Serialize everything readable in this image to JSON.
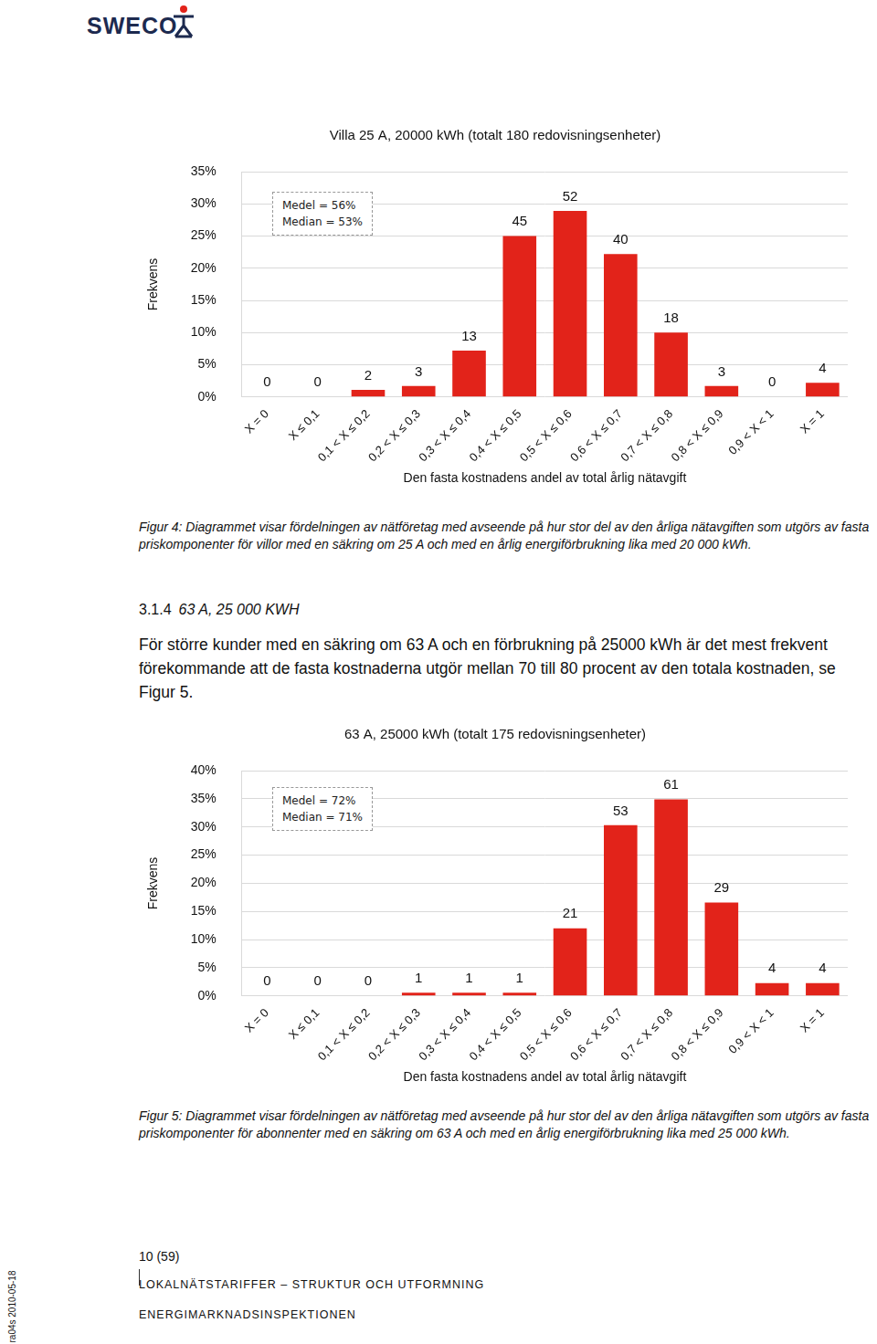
{
  "logo": "SWECO",
  "chart_data": [
    {
      "type": "bar",
      "title": "Villa 25 A, 20000 kWh (totalt 180 redovisningsenheter)",
      "x_label": "Den fasta kostnadens andel av total årlig nätavgift",
      "y_label": "Frekvens",
      "categories": [
        "X = 0",
        "X ≤ 0,1",
        "0,1 < X ≤ 0,2",
        "0,2 < X ≤ 0,3",
        "0,3 < X ≤ 0,4",
        "0,4 < X ≤ 0,5",
        "0,5 < X ≤ 0,6",
        "0,6 < X ≤ 0,7",
        "0,7 < X ≤ 0,8",
        "0,8 < X ≤ 0,9",
        "0,9 < X < 1",
        "X = 1"
      ],
      "values": [
        0,
        0,
        1.1,
        1.7,
        7.2,
        25.0,
        28.9,
        22.2,
        10.0,
        1.7,
        0,
        2.2
      ],
      "counts": [
        0,
        0,
        2,
        3,
        13,
        45,
        52,
        40,
        18,
        3,
        0,
        4
      ],
      "color": "#e2231a",
      "ylim": [
        0,
        35
      ],
      "yticks": [
        {
          "value": 0,
          "label": "0%"
        },
        {
          "value": 5,
          "label": "5%"
        },
        {
          "value": 10,
          "label": "10%"
        },
        {
          "value": 15,
          "label": "15%"
        },
        {
          "value": 20,
          "label": "20%"
        },
        {
          "value": 25,
          "label": "25%"
        },
        {
          "value": 30,
          "label": "30%"
        },
        {
          "value": 35,
          "label": "35%"
        }
      ],
      "grid": true,
      "annotations": [
        "Medel = 56%",
        "Median = 53%"
      ]
    },
    {
      "type": "bar",
      "title": "63 A, 25000 kWh (totalt 175 redovisningsenheter)",
      "x_label": "Den fasta kostnadens andel av total årlig nätavgift",
      "y_label": "Frekvens",
      "categories": [
        "X = 0",
        "X ≤ 0,1",
        "0,1 < X ≤ 0,2",
        "0,2 < X ≤ 0,3",
        "0,3 < X ≤ 0,4",
        "0,4 < X ≤ 0,5",
        "0,5 < X ≤ 0,6",
        "0,6 < X ≤ 0,7",
        "0,7 < X ≤ 0,8",
        "0,8 < X ≤ 0,9",
        "0,9 < X < 1",
        "X = 1"
      ],
      "values": [
        0,
        0,
        0,
        0.6,
        0.6,
        0.6,
        12.0,
        30.3,
        34.9,
        16.6,
        2.3,
        2.3
      ],
      "counts": [
        0,
        0,
        0,
        1,
        1,
        1,
        21,
        53,
        61,
        29,
        4,
        4
      ],
      "color": "#e2231a",
      "ylim": [
        0,
        40
      ],
      "yticks": [
        {
          "value": 0,
          "label": "0%"
        },
        {
          "value": 5,
          "label": "5%"
        },
        {
          "value": 10,
          "label": "10%"
        },
        {
          "value": 15,
          "label": "15%"
        },
        {
          "value": 20,
          "label": "20%"
        },
        {
          "value": 25,
          "label": "25%"
        },
        {
          "value": 30,
          "label": "30%"
        },
        {
          "value": 35,
          "label": "35%"
        },
        {
          "value": 40,
          "label": "40%"
        }
      ],
      "grid": true,
      "annotations": [
        "Medel = 72%",
        "Median = 71%"
      ]
    }
  ],
  "captions": [
    "Figur 4: Diagrammet visar fördelningen av nätföretag med avseende på hur stor del av den årliga nätavgiften som utgörs av fasta priskomponenter för villor med en säkring om 25 A och med en årlig energiförbrukning lika med 20 000 kWh.",
    "Figur 5: Diagrammet visar fördelningen av nätföretag med avseende på hur stor del av den årliga nätavgiften som utgörs av fasta priskomponenter för abonnenter med en säkring om 63 A och med en årlig energiförbrukning lika med 25 000 kWh."
  ],
  "section": {
    "number": "3.1.4",
    "title": "63 A, 25 000 KWH",
    "text": "För större kunder med en säkring om 63 A och en förbrukning på 25000 kWh är det mest frekvent förekommande att de fasta kostnaderna utgör mellan 70 till 80 procent av den totala kostnaden, se Figur 5."
  },
  "page": "10 (59)",
  "footer": [
    "LOKALNÄTSTARIFFER – STRUKTUR OCH UTFORMNING",
    "ENERGIMARKNADSINSPEKTIONEN"
  ],
  "side_note": "ra04s 2010-05-18"
}
